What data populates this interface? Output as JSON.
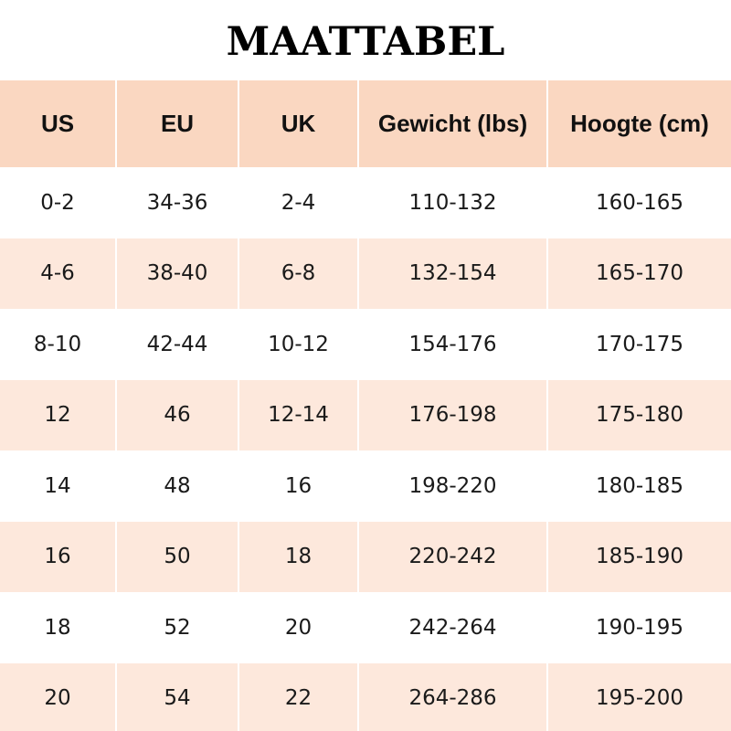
{
  "title": "MAATTABEL",
  "colors": {
    "header_bg": "#fad7c1",
    "row_alt_bg": "#fde8dc",
    "row_bg": "#ffffff"
  },
  "table": {
    "headers": [
      "US",
      "EU",
      "UK",
      "Gewicht (lbs)",
      "Hoogte (cm)"
    ],
    "rows": [
      [
        "0-2",
        "34-36",
        "2-4",
        "110-132",
        "160-165"
      ],
      [
        "4-6",
        "38-40",
        "6-8",
        "132-154",
        "165-170"
      ],
      [
        "8-10",
        "42-44",
        "10-12",
        "154-176",
        "170-175"
      ],
      [
        "12",
        "46",
        "12-14",
        "176-198",
        "175-180"
      ],
      [
        "14",
        "48",
        "16",
        "198-220",
        "180-185"
      ],
      [
        "16",
        "50",
        "18",
        "220-242",
        "185-190"
      ],
      [
        "18",
        "52",
        "20",
        "242-264",
        "190-195"
      ],
      [
        "20",
        "54",
        "22",
        "264-286",
        "195-200"
      ]
    ]
  }
}
